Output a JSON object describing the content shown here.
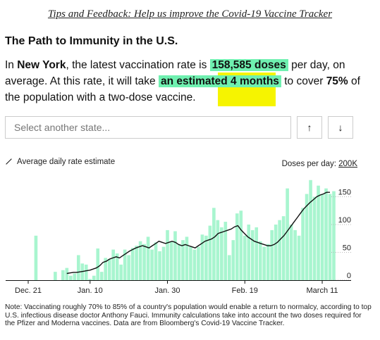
{
  "header": {
    "tips_text": "Tips and Feedback: Help us improve the Covid-19 Vaccine Tracker"
  },
  "section": {
    "title": "The Path to Immunity in the U.S.",
    "s1": "In ",
    "state": "New York",
    "s2": ", the latest vaccination rate is ",
    "doses": "158,585 doses",
    "s3": " per day, on average. At this rate, it will take ",
    "estimate": "an estimated 4 months",
    "s4": " to cover ",
    "percent": "75%",
    "s5": " of the population with a two-dose vaccine."
  },
  "controls": {
    "select_placeholder": "Select another state...",
    "up_label": "↑",
    "down_label": "↓"
  },
  "legend": {
    "line_label": "Average daily rate estimate",
    "doses_label": "Doses per day: ",
    "doses_max": "200K"
  },
  "colors": {
    "bar": "#a8f5cf",
    "line": "#111111",
    "highlight": "#6ff0b0",
    "marker": "#f6f400"
  },
  "chart_data": {
    "type": "bar",
    "xlabel": "",
    "ylabel": "Doses per day",
    "ylim": [
      0,
      200
    ],
    "yticks": [
      0,
      50,
      100,
      150
    ],
    "x_range": [
      0,
      82
    ],
    "x_ticks": [
      {
        "x": 0,
        "label": "Dec. 21"
      },
      {
        "x": 20,
        "label": "Jan. 10"
      },
      {
        "x": 40,
        "label": "Jan. 30"
      },
      {
        "x": 60,
        "label": "Feb. 19"
      },
      {
        "x": 80,
        "label": "March 11"
      }
    ],
    "series": [
      {
        "kind": "bar",
        "values": [
          0,
          0,
          0,
          0,
          0,
          0,
          80,
          0,
          0,
          0,
          0,
          15,
          0,
          18,
          22,
          8,
          12,
          45,
          30,
          28,
          2,
          8,
          57,
          15,
          40,
          38,
          55,
          48,
          28,
          55,
          45,
          58,
          62,
          70,
          65,
          78,
          55,
          68,
          52,
          60,
          90,
          70,
          88,
          65,
          72,
          78,
          60,
          55,
          60,
          82,
          80,
          98,
          130,
          108,
          95,
          105,
          45,
          72,
          120,
          125,
          80,
          100,
          90,
          95,
          70,
          60,
          65,
          90,
          100,
          108,
          115,
          165,
          100,
          90,
          80,
          130,
          155,
          180,
          150,
          170,
          155,
          165,
          155,
          160,
          0
        ],
        "x_start": 0
      },
      {
        "kind": "line",
        "name": "Average daily rate estimate",
        "x_start": 14,
        "values": [
          12,
          13,
          14,
          14,
          15,
          16,
          17,
          18,
          20,
          22,
          26,
          32,
          34,
          38,
          40,
          42,
          40,
          44,
          48,
          52,
          55,
          58,
          60,
          62,
          60,
          58,
          62,
          66,
          70,
          68,
          66,
          68,
          70,
          68,
          64,
          62,
          64,
          62,
          60,
          58,
          62,
          66,
          70,
          72,
          74,
          78,
          84,
          86,
          88,
          90,
          92,
          96,
          98,
          90,
          84,
          78,
          74,
          70,
          68,
          66,
          64,
          62,
          62,
          64,
          68,
          74,
          80,
          88,
          96,
          104,
          112,
          120,
          128,
          134,
          140,
          145,
          150,
          153,
          155,
          158,
          158
        ]
      }
    ]
  },
  "note": "Note: Vaccinating roughly 70% to 85% of a country's population would enable a return to normalcy, according to top U.S. infectious disease doctor Anthony Fauci. Immunity calculations take into account the two doses required for the Pfizer and Moderna vaccines. Data are from Bloomberg's Covid-19 Vaccine Tracker."
}
